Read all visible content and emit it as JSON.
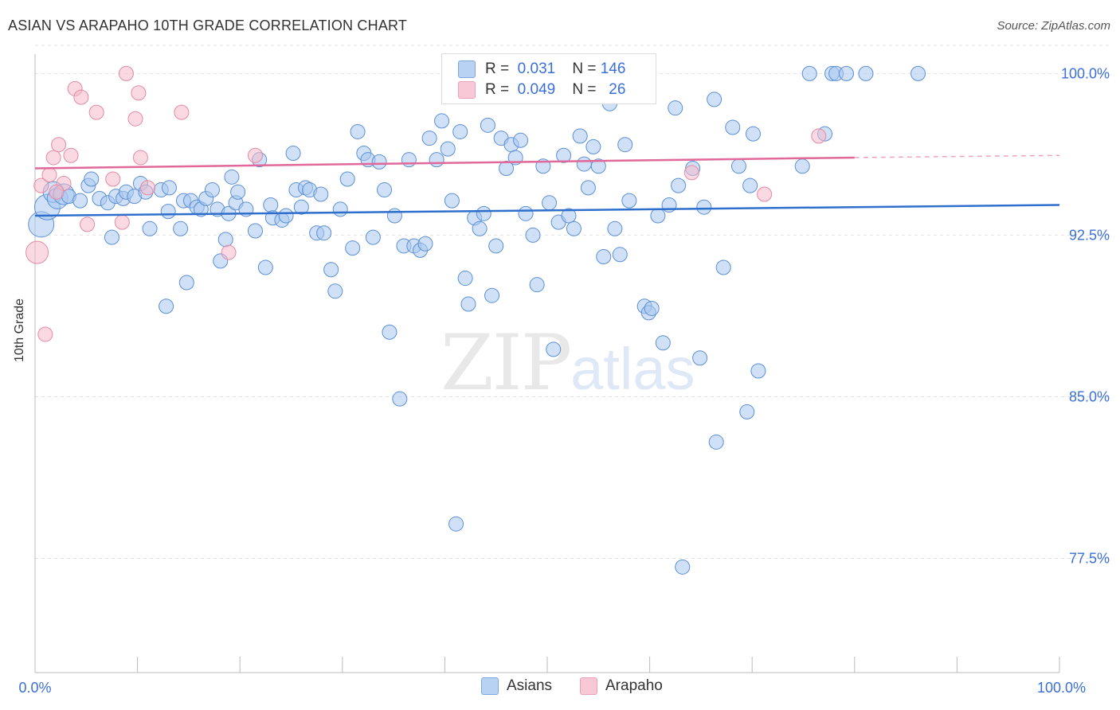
{
  "title": "ASIAN VS ARAPAHO 10TH GRADE CORRELATION CHART",
  "source": "Source: ZipAtlas.com",
  "watermark": {
    "zip": "ZIP",
    "atlas": "atlas"
  },
  "legend_top": {
    "asian": {
      "r_label": "R =",
      "r_value": "0.031",
      "n_label": "N =",
      "n_value": "146"
    },
    "arapaho": {
      "r_label": "R =",
      "r_value": "0.049",
      "n_label": "N =",
      "n_value": "26"
    }
  },
  "colors": {
    "asian_fill": "#a9c8f0",
    "asian_stroke": "#5b8fd6",
    "asian_line": "#2f6fcc",
    "arapaho_fill": "#f6b9cb",
    "arapaho_stroke": "#e48aa6",
    "arapaho_line": "#e0689a",
    "tick_label": "#3a6fd8"
  },
  "chart_data": {
    "type": "scatter",
    "title": "ASIAN VS ARAPAHO 10TH GRADE CORRELATION CHART",
    "xlabel": "",
    "ylabel": "10th Grade",
    "xlim": [
      0,
      100
    ],
    "ylim": [
      72.2,
      100.9
    ],
    "x_tick_labels": [
      "0.0%",
      "100.0%"
    ],
    "y_ticks": [
      77.5,
      85.0,
      92.5,
      100.0
    ],
    "y_tick_labels": [
      "77.5%",
      "85.0%",
      "92.5%",
      "100.0%"
    ],
    "grid": "horizontal dashed",
    "legend": "bottom-center",
    "series": [
      {
        "name": "Asians",
        "trend": {
          "x": [
            0,
            100
          ],
          "y": [
            93.4,
            93.9
          ]
        },
        "points": [
          [
            0.6,
            93.0
          ],
          [
            1.2,
            93.8
          ],
          [
            1.8,
            94.5
          ],
          [
            2.2,
            94.2
          ],
          [
            2.8,
            94.4
          ],
          [
            3.3,
            94.3
          ],
          [
            4.4,
            94.1
          ],
          [
            5.2,
            94.8
          ],
          [
            5.5,
            95.1
          ],
          [
            6.3,
            94.2
          ],
          [
            7.1,
            94.0
          ],
          [
            7.5,
            92.4
          ],
          [
            7.9,
            94.3
          ],
          [
            8.6,
            94.2
          ],
          [
            8.9,
            94.5
          ],
          [
            9.7,
            94.3
          ],
          [
            10.3,
            94.9
          ],
          [
            10.8,
            94.5
          ],
          [
            11.2,
            92.8
          ],
          [
            12.3,
            94.6
          ],
          [
            12.8,
            89.2
          ],
          [
            13.1,
            94.7
          ],
          [
            13.0,
            93.6
          ],
          [
            14.2,
            92.8
          ],
          [
            14.5,
            94.1
          ],
          [
            14.8,
            90.3
          ],
          [
            15.2,
            94.1
          ],
          [
            15.8,
            93.8
          ],
          [
            16.2,
            93.7
          ],
          [
            16.7,
            94.2
          ],
          [
            17.3,
            94.6
          ],
          [
            17.8,
            93.7
          ],
          [
            18.1,
            91.3
          ],
          [
            18.6,
            92.3
          ],
          [
            18.9,
            93.5
          ],
          [
            19.2,
            95.2
          ],
          [
            19.6,
            94.0
          ],
          [
            19.8,
            94.5
          ],
          [
            20.6,
            93.7
          ],
          [
            21.5,
            92.7
          ],
          [
            21.9,
            96.0
          ],
          [
            22.5,
            91.0
          ],
          [
            23.0,
            93.9
          ],
          [
            23.2,
            93.3
          ],
          [
            24.1,
            93.2
          ],
          [
            24.5,
            93.4
          ],
          [
            25.2,
            96.3
          ],
          [
            25.5,
            94.6
          ],
          [
            26.0,
            93.8
          ],
          [
            26.4,
            94.7
          ],
          [
            26.8,
            94.6
          ],
          [
            27.5,
            92.6
          ],
          [
            27.9,
            94.4
          ],
          [
            28.2,
            92.6
          ],
          [
            28.9,
            90.9
          ],
          [
            29.3,
            89.9
          ],
          [
            29.8,
            93.7
          ],
          [
            30.5,
            95.1
          ],
          [
            31.0,
            91.9
          ],
          [
            31.5,
            97.3
          ],
          [
            32.1,
            96.3
          ],
          [
            32.5,
            96.0
          ],
          [
            33.0,
            92.4
          ],
          [
            33.6,
            95.9
          ],
          [
            34.1,
            94.6
          ],
          [
            34.6,
            88.0
          ],
          [
            35.1,
            93.4
          ],
          [
            35.6,
            84.9
          ],
          [
            36.0,
            92.0
          ],
          [
            36.5,
            96.0
          ],
          [
            37.0,
            92.0
          ],
          [
            37.6,
            91.8
          ],
          [
            38.1,
            92.1
          ],
          [
            38.5,
            97.0
          ],
          [
            39.2,
            96.0
          ],
          [
            39.7,
            97.8
          ],
          [
            40.3,
            96.5
          ],
          [
            40.7,
            94.1
          ],
          [
            41.1,
            79.1
          ],
          [
            41.5,
            97.3
          ],
          [
            42.0,
            90.5
          ],
          [
            42.3,
            89.3
          ],
          [
            42.9,
            93.3
          ],
          [
            43.4,
            92.8
          ],
          [
            43.8,
            93.5
          ],
          [
            44.2,
            97.6
          ],
          [
            44.6,
            89.7
          ],
          [
            45.0,
            92.0
          ],
          [
            45.5,
            97.0
          ],
          [
            46.0,
            95.6
          ],
          [
            46.5,
            96.7
          ],
          [
            46.9,
            96.1
          ],
          [
            47.4,
            96.9
          ],
          [
            47.9,
            93.5
          ],
          [
            48.6,
            92.5
          ],
          [
            49.0,
            90.2
          ],
          [
            49.6,
            95.7
          ],
          [
            50.2,
            94.0
          ],
          [
            50.6,
            87.2
          ],
          [
            51.1,
            93.1
          ],
          [
            51.6,
            96.2
          ],
          [
            52.1,
            93.4
          ],
          [
            52.6,
            92.8
          ],
          [
            53.2,
            97.1
          ],
          [
            53.6,
            95.8
          ],
          [
            54.0,
            94.7
          ],
          [
            54.5,
            96.6
          ],
          [
            55.0,
            95.7
          ],
          [
            55.5,
            91.5
          ],
          [
            56.1,
            98.6
          ],
          [
            56.6,
            92.8
          ],
          [
            57.1,
            91.6
          ],
          [
            57.6,
            96.7
          ],
          [
            58.0,
            94.1
          ],
          [
            59.5,
            89.2
          ],
          [
            59.9,
            88.9
          ],
          [
            60.2,
            89.1
          ],
          [
            60.8,
            93.4
          ],
          [
            61.3,
            87.5
          ],
          [
            61.9,
            93.9
          ],
          [
            62.5,
            98.4
          ],
          [
            62.8,
            94.8
          ],
          [
            63.2,
            77.1
          ],
          [
            64.2,
            95.6
          ],
          [
            64.9,
            86.8
          ],
          [
            65.3,
            93.8
          ],
          [
            66.3,
            98.8
          ],
          [
            66.5,
            82.9
          ],
          [
            67.2,
            91.0
          ],
          [
            68.1,
            97.5
          ],
          [
            68.7,
            95.7
          ],
          [
            69.5,
            84.3
          ],
          [
            69.8,
            94.8
          ],
          [
            70.1,
            97.2
          ],
          [
            70.6,
            86.2
          ],
          [
            74.9,
            95.7
          ],
          [
            75.6,
            100.0
          ],
          [
            77.8,
            100.0
          ],
          [
            78.2,
            100.0
          ],
          [
            79.2,
            100.0
          ],
          [
            81.1,
            100.0
          ],
          [
            86.2,
            100.0
          ],
          [
            77.1,
            97.2
          ]
        ]
      },
      {
        "name": "Arapaho",
        "trend": {
          "x": [
            0,
            80
          ],
          "y": [
            95.6,
            96.1
          ]
        },
        "trend_dashed": {
          "x": [
            80,
            100
          ],
          "y": [
            96.1,
            96.2
          ]
        },
        "points": [
          [
            0.2,
            91.7
          ],
          [
            0.6,
            94.8
          ],
          [
            1.0,
            87.9
          ],
          [
            1.4,
            95.3
          ],
          [
            1.8,
            96.1
          ],
          [
            2.3,
            96.7
          ],
          [
            2.8,
            94.9
          ],
          [
            3.5,
            96.2
          ],
          [
            3.9,
            99.3
          ],
          [
            4.5,
            98.9
          ],
          [
            5.1,
            93.0
          ],
          [
            6.0,
            98.2
          ],
          [
            7.6,
            95.1
          ],
          [
            8.5,
            93.1
          ],
          [
            8.9,
            100.0
          ],
          [
            9.8,
            97.9
          ],
          [
            10.1,
            99.1
          ],
          [
            10.3,
            96.1
          ],
          [
            11.0,
            94.7
          ],
          [
            14.3,
            98.2
          ],
          [
            18.9,
            91.7
          ],
          [
            21.5,
            96.2
          ],
          [
            64.1,
            95.4
          ],
          [
            71.2,
            94.4
          ],
          [
            76.5,
            97.1
          ],
          [
            2.1,
            94.5
          ]
        ]
      }
    ]
  },
  "bottom_legend": {
    "asians": "Asians",
    "arapaho": "Arapaho"
  }
}
